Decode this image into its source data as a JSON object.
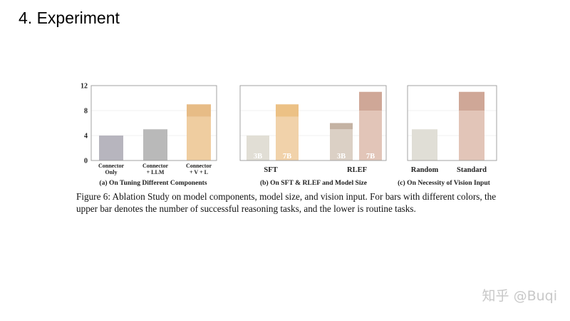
{
  "slide": {
    "title": "4. Experiment"
  },
  "caption": "Figure 6: Ablation Study on model components, model size, and vision input. For bars with different colors, the upper bar denotes the number of successful reasoning tasks, and the lower is routine tasks.",
  "watermark": "知乎 @Buqi",
  "chart_data": [
    {
      "type": "bar",
      "title": "(a) On Tuning Different Components",
      "categories": [
        [
          "Connector",
          "Only"
        ],
        [
          "Connector",
          "+ LLM"
        ],
        [
          "Connector",
          "+ V + L"
        ]
      ],
      "series": [
        {
          "values": [
            4,
            5,
            7
          ],
          "colors": [
            "#b7b5be",
            "#b9b9b9",
            "#efcda0"
          ]
        },
        {
          "values": [
            0,
            0,
            2
          ],
          "colors": [
            "#b7b5be",
            "#b9b9b9",
            "#e7bc86"
          ]
        }
      ],
      "yticks": [
        0,
        4,
        8,
        12
      ],
      "ylim": [
        0,
        12
      ],
      "grid": true
    },
    {
      "type": "bar",
      "title": "(b) On SFT & RLEF and Model Size",
      "groups": [
        "SFT",
        "RLEF"
      ],
      "bar_labels": [
        "3B",
        "7B",
        "3B",
        "7B"
      ],
      "series": [
        {
          "values": [
            4,
            7,
            5,
            8
          ],
          "colors": [
            "#e1ded5",
            "#f1d2aa",
            "#dbd0c5",
            "#e2c5b8"
          ]
        },
        {
          "values": [
            0,
            2,
            1,
            3
          ],
          "colors": [
            "#e1ded5",
            "#ecc185",
            "#c4b2a3",
            "#cfa797"
          ]
        }
      ],
      "ylim": [
        0,
        12
      ],
      "grid": true
    },
    {
      "type": "bar",
      "title": "(c) On Necessity of Vision Input",
      "categories": [
        "Random",
        "Standard"
      ],
      "series": [
        {
          "values": [
            5,
            8
          ],
          "colors": [
            "#e0ded6",
            "#e2c5b8"
          ]
        },
        {
          "values": [
            0,
            3
          ],
          "colors": [
            "#e0ded6",
            "#cfa797"
          ]
        }
      ],
      "ylim": [
        0,
        12
      ],
      "grid": true
    }
  ]
}
